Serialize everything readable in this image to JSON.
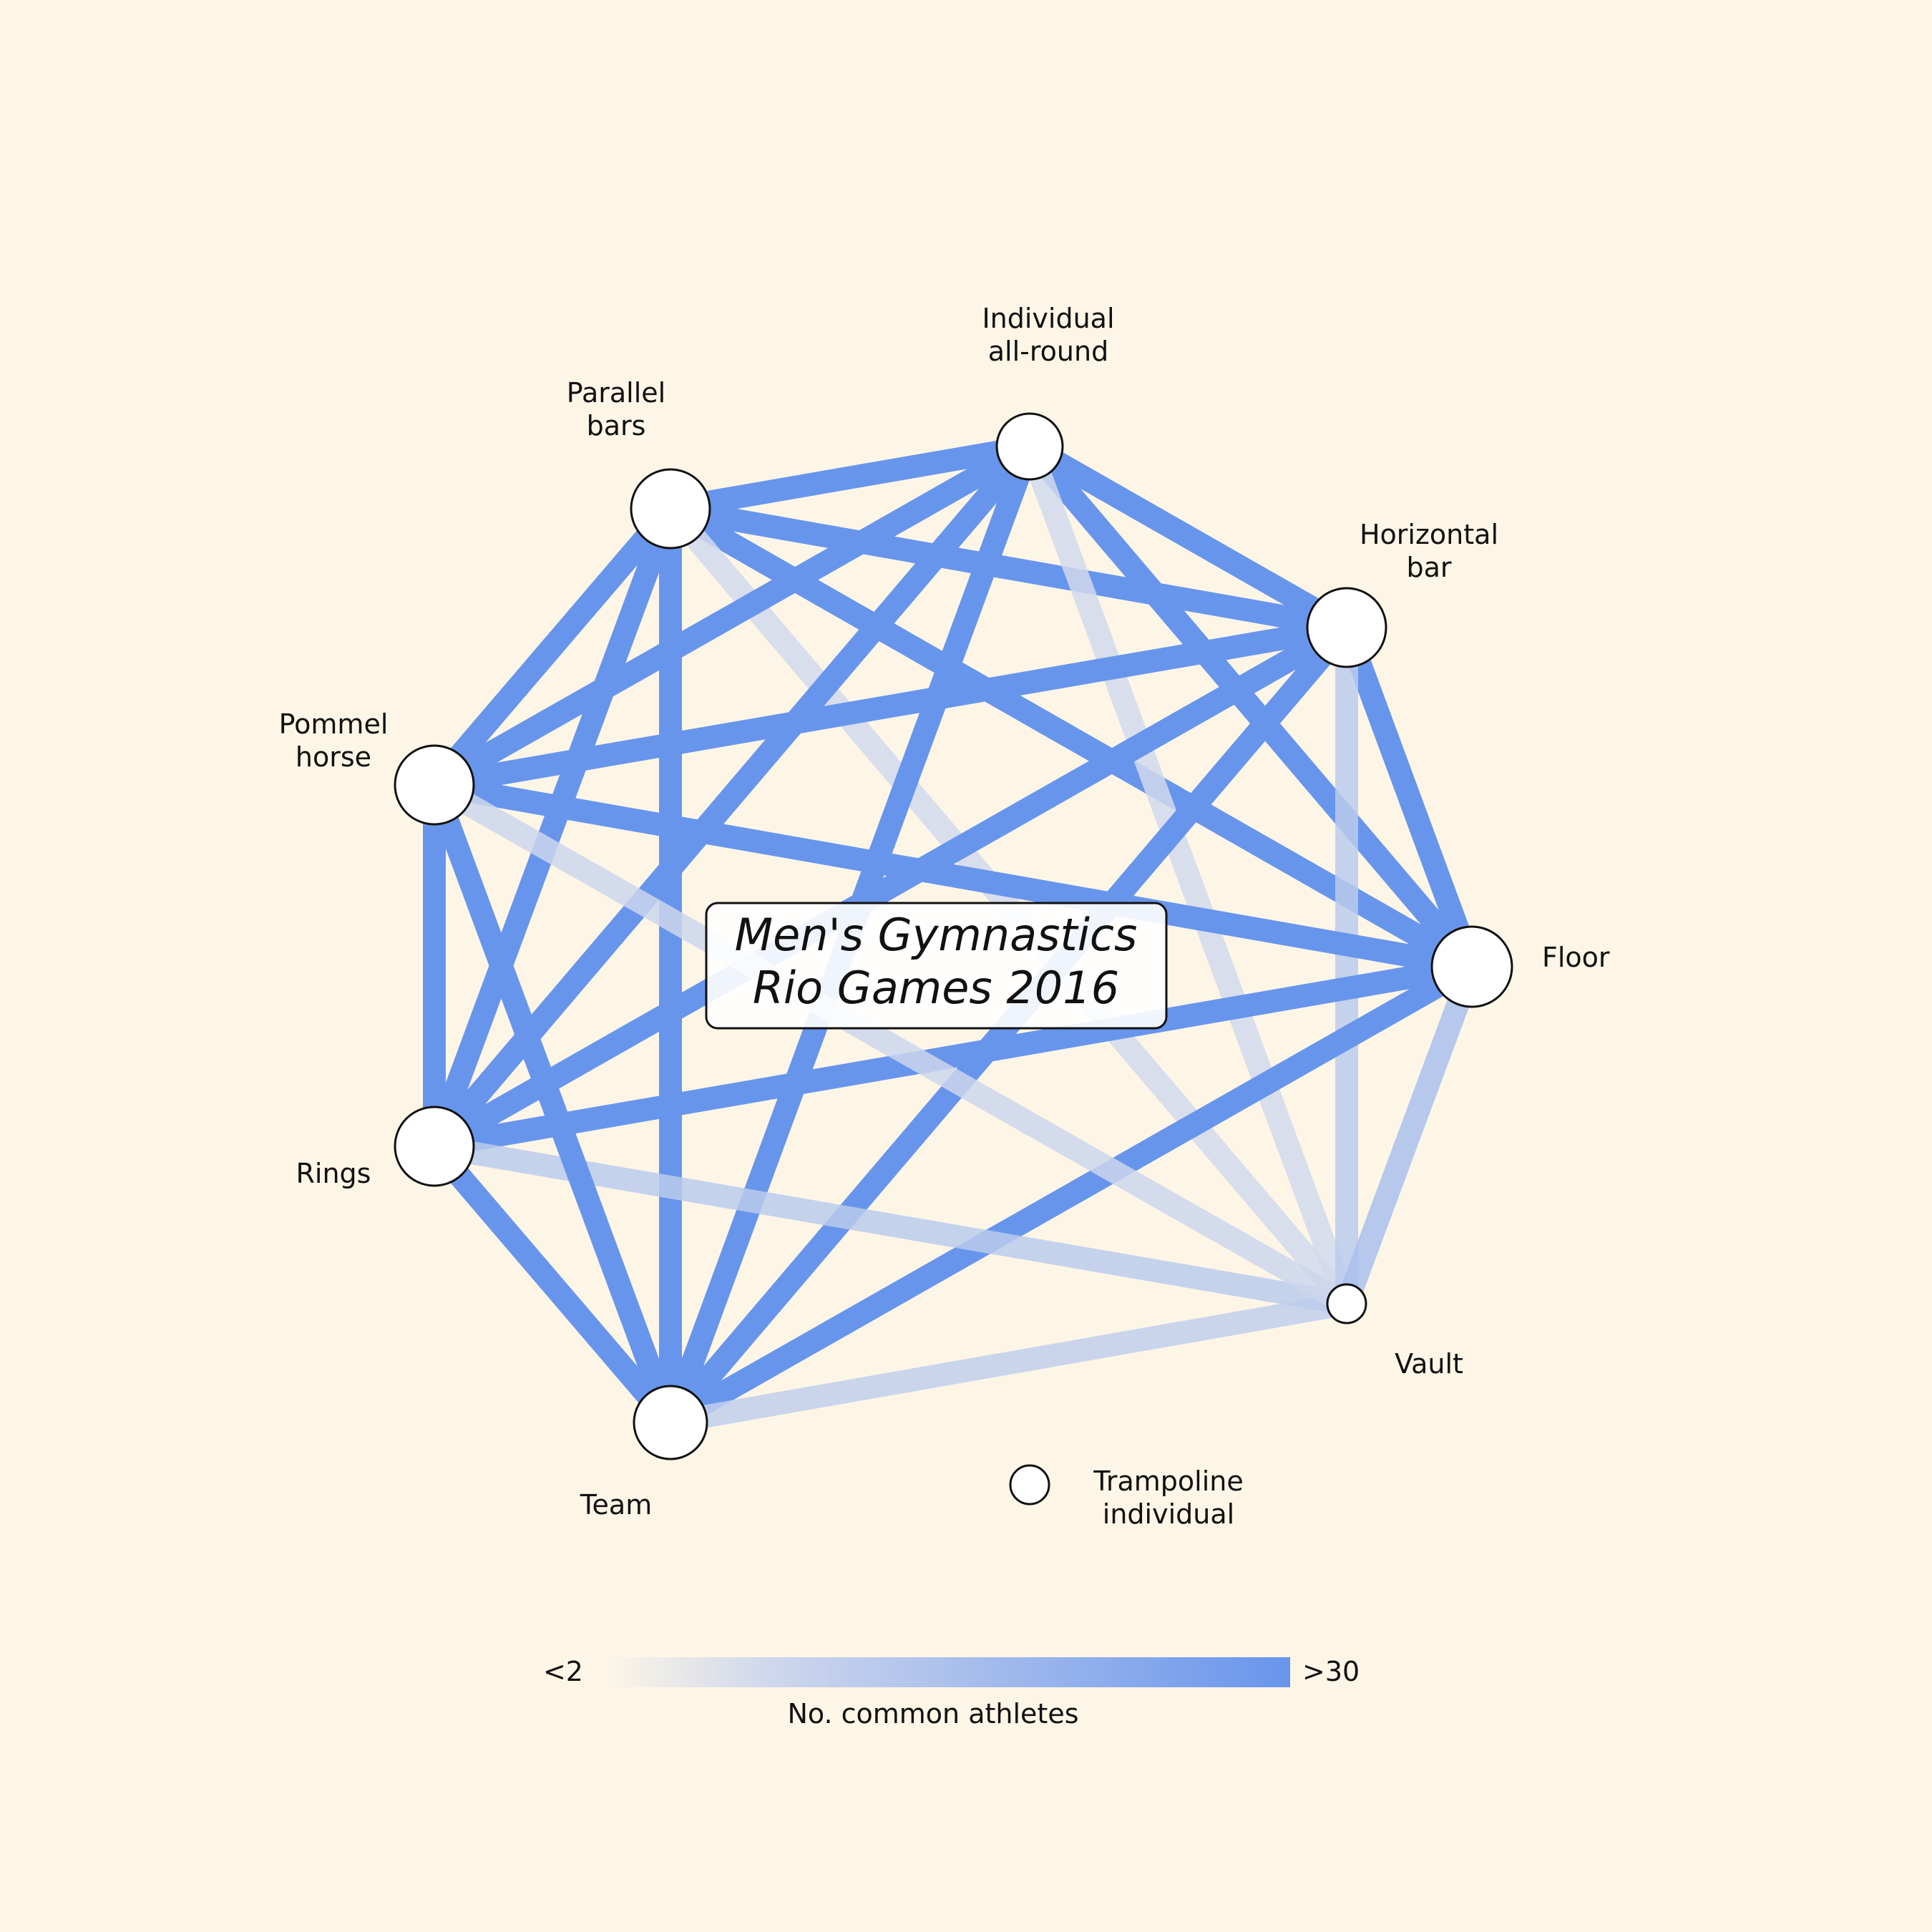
{
  "title": {
    "line1": "Men's Gymnastics",
    "line2": "Rio Games 2016"
  },
  "colors": {
    "background": "#fdf6e7",
    "edge": "#6895ec",
    "edge_faint": "#dfe2ec",
    "node_fill": "#ffffff",
    "node_stroke": "#111111"
  },
  "nodes": [
    {
      "id": "individual-all-round",
      "label_lines": [
        "Individual",
        "all-round"
      ]
    },
    {
      "id": "horizontal-bar",
      "label_lines": [
        "Horizontal",
        "bar"
      ]
    },
    {
      "id": "floor",
      "label_lines": [
        "Floor"
      ]
    },
    {
      "id": "vault",
      "label_lines": [
        "Vault"
      ]
    },
    {
      "id": "trampoline-individual",
      "label_lines": [
        "Trampoline",
        "individual"
      ]
    },
    {
      "id": "team",
      "label_lines": [
        "Team"
      ]
    },
    {
      "id": "rings",
      "label_lines": [
        "Rings"
      ]
    },
    {
      "id": "pommel-horse",
      "label_lines": [
        "Pommel",
        "horse"
      ]
    },
    {
      "id": "parallel-bars",
      "label_lines": [
        "Parallel",
        "bars"
      ]
    }
  ],
  "edges": [
    {
      "from": "parallel-bars",
      "to": "individual-all-round",
      "strength": 1
    },
    {
      "from": "parallel-bars",
      "to": "horizontal-bar",
      "strength": 1
    },
    {
      "from": "parallel-bars",
      "to": "floor",
      "strength": 1
    },
    {
      "from": "parallel-bars",
      "to": "vault",
      "strength": 0.12
    },
    {
      "from": "parallel-bars",
      "to": "team",
      "strength": 1
    },
    {
      "from": "parallel-bars",
      "to": "rings",
      "strength": 1
    },
    {
      "from": "parallel-bars",
      "to": "pommel-horse",
      "strength": 1
    },
    {
      "from": "individual-all-round",
      "to": "horizontal-bar",
      "strength": 1
    },
    {
      "from": "individual-all-round",
      "to": "floor",
      "strength": 1
    },
    {
      "from": "individual-all-round",
      "to": "vault",
      "strength": 0.12
    },
    {
      "from": "individual-all-round",
      "to": "team",
      "strength": 1
    },
    {
      "from": "individual-all-round",
      "to": "rings",
      "strength": 1
    },
    {
      "from": "individual-all-round",
      "to": "pommel-horse",
      "strength": 1
    },
    {
      "from": "horizontal-bar",
      "to": "floor",
      "strength": 1
    },
    {
      "from": "horizontal-bar",
      "to": "vault",
      "strength": 0.3
    },
    {
      "from": "horizontal-bar",
      "to": "team",
      "strength": 1
    },
    {
      "from": "horizontal-bar",
      "to": "rings",
      "strength": 1
    },
    {
      "from": "horizontal-bar",
      "to": "pommel-horse",
      "strength": 1
    },
    {
      "from": "floor",
      "to": "vault",
      "strength": 0.45
    },
    {
      "from": "floor",
      "to": "team",
      "strength": 1
    },
    {
      "from": "floor",
      "to": "rings",
      "strength": 1
    },
    {
      "from": "floor",
      "to": "pommel-horse",
      "strength": 1
    },
    {
      "from": "vault",
      "to": "team",
      "strength": 0.25
    },
    {
      "from": "vault",
      "to": "rings",
      "strength": 0.3
    },
    {
      "from": "vault",
      "to": "pommel-horse",
      "strength": 0.15
    },
    {
      "from": "team",
      "to": "rings",
      "strength": 1
    },
    {
      "from": "team",
      "to": "pommel-horse",
      "strength": 1
    },
    {
      "from": "rings",
      "to": "pommel-horse",
      "strength": 1
    }
  ],
  "legend": {
    "min_label": "<2",
    "max_label": ">30",
    "caption": "No. common athletes"
  }
}
